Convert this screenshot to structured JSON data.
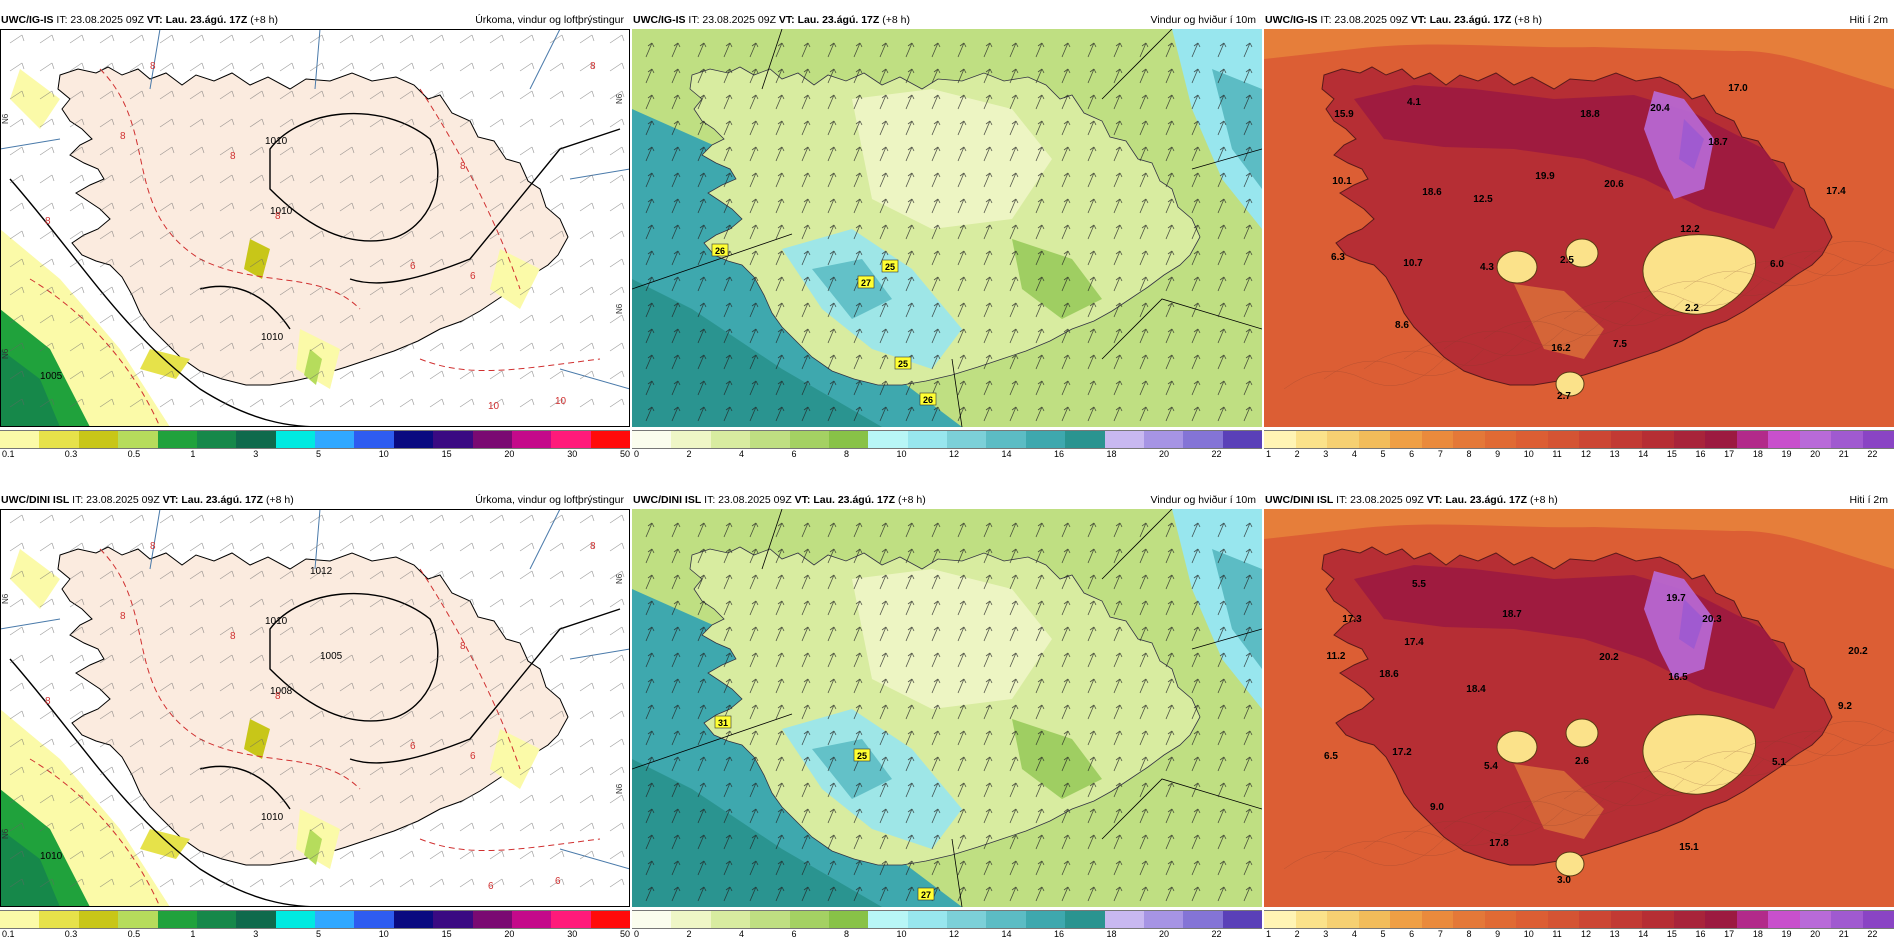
{
  "palettes": {
    "precip": [
      "#fbfaa8",
      "#e6e24a",
      "#c8c618",
      "#b6dc5c",
      "#20a23c",
      "#16884a",
      "#0f6a4c",
      "#00eae0",
      "#30a8ff",
      "#2e5cf0",
      "#0a0a80",
      "#3a0a82",
      "#7a0a72",
      "#c40a8a",
      "#ff1a7a",
      "#ff0a0a"
    ],
    "wind": [
      "#fbfdee",
      "#eff6c6",
      "#d8eca0",
      "#bfdf82",
      "#a4d163",
      "#88c247",
      "#b8f6f6",
      "#98e6ee",
      "#7cd0d8",
      "#5cbcc4",
      "#3ea8ae",
      "#2a9490",
      "#c8b8f0",
      "#a694e4",
      "#8474d6",
      "#5a40b8"
    ],
    "temp": [
      "#fff4b4",
      "#fbe28a",
      "#f6d072",
      "#f2bc5a",
      "#ef9f45",
      "#ea8a3c",
      "#e47838",
      "#e06a34",
      "#dc5e34",
      "#d45434",
      "#cc4634",
      "#c23a34",
      "#b62e34",
      "#a8243a",
      "#9c1a40",
      "#b22a8a",
      "#c850cc",
      "#b86ad8",
      "#a05ad0",
      "#8a44c4"
    ]
  },
  "panels": [
    {
      "id": "igis-precip",
      "model": "UWC/IG-IS",
      "it": "IT: 23.08.2025 09Z",
      "vt_label": "VT:",
      "vt": "Lau. 23.ágú. 17Z",
      "lead": "(+8 h)",
      "title": "Úrkoma, vindur og loftþrýstingur",
      "palette": "precip",
      "ticks": [
        "0.1",
        "0.3",
        "0.5",
        "1",
        "3",
        "5",
        "10",
        "15",
        "20",
        "30",
        "50"
      ],
      "isobar_labels": [
        "1010",
        "1010",
        "1010",
        "1005"
      ],
      "dashed_labels": [
        "8",
        "8",
        "8",
        "8",
        "8",
        "8",
        "6",
        "6",
        "8",
        "10",
        "10"
      ],
      "side_labels": [
        "N6",
        "N6",
        "N6",
        "N6"
      ],
      "point_values": []
    },
    {
      "id": "igis-wind",
      "model": "UWC/IG-IS",
      "it": "IT: 23.08.2025 09Z",
      "vt_label": "VT:",
      "vt": "Lau. 23.ágú. 17Z",
      "lead": "(+8 h)",
      "title": "Vindur og hviður í 10m",
      "palette": "wind",
      "ticks": [
        "0",
        "2",
        "4",
        "6",
        "8",
        "10",
        "12",
        "14",
        "16",
        "18",
        "20",
        "22"
      ],
      "point_values": [
        "26",
        "25",
        "27",
        "25",
        "26"
      ]
    },
    {
      "id": "igis-temp",
      "model": "UWC/IG-IS",
      "it": "IT: 23.08.2025 09Z",
      "vt_label": "VT:",
      "vt": "Lau. 23.ágú. 17Z",
      "lead": "(+8 h)",
      "title": "Hiti í 2m",
      "palette": "temp",
      "ticks": [
        "1",
        "2",
        "3",
        "4",
        "5",
        "6",
        "7",
        "8",
        "9",
        "10",
        "11",
        "12",
        "13",
        "14",
        "15",
        "16",
        "17",
        "18",
        "19",
        "20",
        "21",
        "22"
      ],
      "point_values": [
        "4.1",
        "15.9",
        "18.8",
        "20.4",
        "17.0",
        "10.1",
        "18.6",
        "12.5",
        "19.9",
        "20.6",
        "18.7",
        "17.4",
        "12.2",
        "6.3",
        "10.7",
        "4.3",
        "2.5",
        "6.0",
        "2.2",
        "8.6",
        "16.2",
        "7.5",
        "2.7"
      ]
    },
    {
      "id": "dini-precip",
      "model": "UWC/DINI ISL",
      "it": "IT: 23.08.2025 09Z",
      "vt_label": "VT:",
      "vt": "Lau. 23.ágú. 17Z",
      "lead": "(+8 h)",
      "title": "Úrkoma, vindur og loftþrýstingur",
      "palette": "precip",
      "ticks": [
        "0.1",
        "0.3",
        "0.5",
        "1",
        "3",
        "5",
        "10",
        "15",
        "20",
        "30",
        "50"
      ],
      "isobar_labels": [
        "1010",
        "1008",
        "1010",
        "1010",
        "1012",
        "1005"
      ],
      "dashed_labels": [
        "8",
        "8",
        "8",
        "8",
        "8",
        "8",
        "6",
        "6",
        "8",
        "6",
        "6"
      ],
      "side_labels": [
        "N6",
        "N6",
        "N6",
        "N6"
      ],
      "point_values": []
    },
    {
      "id": "dini-wind",
      "model": "UWC/DINI ISL",
      "it": "IT: 23.08.2025 09Z",
      "vt_label": "VT:",
      "vt": "Lau. 23.ágú. 17Z",
      "lead": "(+8 h)",
      "title": "Vindur og hviður í 10m",
      "palette": "wind",
      "ticks": [
        "0",
        "2",
        "4",
        "6",
        "8",
        "10",
        "12",
        "14",
        "16",
        "18",
        "20",
        "22"
      ],
      "point_values": [
        "31",
        "25",
        "27"
      ]
    },
    {
      "id": "dini-temp",
      "model": "UWC/DINI ISL",
      "it": "IT: 23.08.2025 09Z",
      "vt_label": "VT:",
      "vt": "Lau. 23.ágú. 17Z",
      "lead": "(+8 h)",
      "title": "Hiti í 2m",
      "palette": "temp",
      "ticks": [
        "1",
        "2",
        "3",
        "4",
        "5",
        "6",
        "7",
        "8",
        "9",
        "10",
        "11",
        "12",
        "13",
        "14",
        "15",
        "16",
        "17",
        "18",
        "19",
        "20",
        "21",
        "22"
      ],
      "point_values": [
        "5.5",
        "19.7",
        "17.3",
        "18.7",
        "20.3",
        "11.2",
        "17.4",
        "20.2",
        "16.5",
        "20.2",
        "18.6",
        "18.4",
        "9.2",
        "6.5",
        "17.2",
        "5.4",
        "2.6",
        "5.1",
        "9.0",
        "17.8",
        "15.1",
        "3.0"
      ]
    }
  ]
}
